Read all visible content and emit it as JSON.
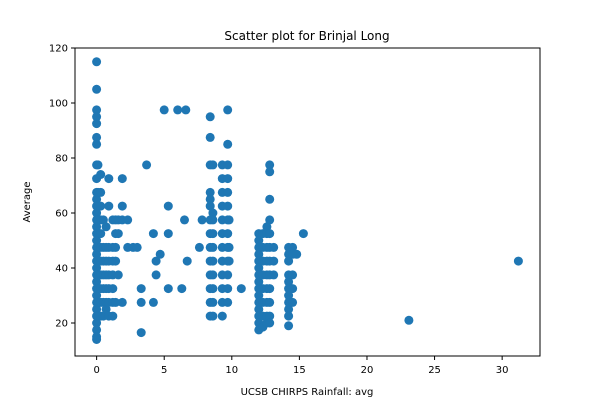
{
  "chart_data": {
    "type": "scatter",
    "title": "Scatter plot for Brinjal Long",
    "xlabel": "UCSB CHIRPS Rainfall: avg",
    "ylabel": "Average",
    "xlim": [
      -1.6,
      32.8
    ],
    "ylim": [
      8,
      120
    ],
    "xticks": [
      0,
      5,
      10,
      15,
      20,
      25,
      30
    ],
    "yticks": [
      20,
      40,
      60,
      80,
      100,
      120
    ],
    "grid": false,
    "marker_color": "#1f77b4",
    "series": [
      {
        "points": [
          [
            0.0,
            115
          ],
          [
            0.0,
            105
          ],
          [
            0.0,
            97.5
          ],
          [
            0.0,
            95
          ],
          [
            0.0,
            92.5
          ],
          [
            0.0,
            87.5
          ],
          [
            0.0,
            85
          ],
          [
            0.0,
            77.5
          ],
          [
            0.0,
            72.5
          ],
          [
            0.0,
            67.5
          ],
          [
            0.0,
            65
          ],
          [
            0.0,
            62.5
          ],
          [
            0.0,
            60
          ],
          [
            0.0,
            57.5
          ],
          [
            0.0,
            55
          ],
          [
            0.0,
            52.5
          ],
          [
            0.0,
            50
          ],
          [
            0.0,
            47.5
          ],
          [
            0.0,
            45
          ],
          [
            0.0,
            42.5
          ],
          [
            0.0,
            40
          ],
          [
            0.0,
            37.5
          ],
          [
            0.0,
            35
          ],
          [
            0.0,
            32.5
          ],
          [
            0.0,
            30
          ],
          [
            0.0,
            27.5
          ],
          [
            0.0,
            25
          ],
          [
            0.0,
            22.5
          ],
          [
            0.0,
            20
          ],
          [
            0.0,
            17.5
          ],
          [
            0.0,
            15
          ],
          [
            0.0,
            14
          ],
          [
            0.1,
            77.5
          ],
          [
            0.1,
            67.5
          ],
          [
            0.1,
            57.5
          ],
          [
            0.1,
            47.5
          ],
          [
            0.1,
            37.5
          ],
          [
            0.1,
            27.5
          ],
          [
            0.1,
            22.5
          ],
          [
            0.3,
            74
          ],
          [
            0.3,
            67.5
          ],
          [
            0.3,
            62.5
          ],
          [
            0.3,
            57.5
          ],
          [
            0.3,
            52.5
          ],
          [
            0.3,
            47.5
          ],
          [
            0.3,
            42.5
          ],
          [
            0.3,
            37.5
          ],
          [
            0.3,
            32.5
          ],
          [
            0.3,
            27.5
          ],
          [
            0.3,
            22.5
          ],
          [
            0.5,
            57.5
          ],
          [
            0.5,
            47.5
          ],
          [
            0.5,
            42.5
          ],
          [
            0.5,
            37.5
          ],
          [
            0.5,
            32.5
          ],
          [
            0.5,
            27.5
          ],
          [
            0.5,
            22.5
          ],
          [
            0.7,
            55
          ],
          [
            0.7,
            47.5
          ],
          [
            0.7,
            42.5
          ],
          [
            0.7,
            37.5
          ],
          [
            0.7,
            32.5
          ],
          [
            0.7,
            27.5
          ],
          [
            0.7,
            25
          ],
          [
            0.9,
            72.5
          ],
          [
            0.9,
            62.5
          ],
          [
            0.9,
            47.5
          ],
          [
            0.9,
            42.5
          ],
          [
            0.9,
            37.5
          ],
          [
            0.9,
            32.5
          ],
          [
            0.9,
            27.5
          ],
          [
            0.9,
            22.5
          ],
          [
            1.2,
            57.5
          ],
          [
            1.2,
            47.5
          ],
          [
            1.2,
            42.5
          ],
          [
            1.2,
            37.5
          ],
          [
            1.2,
            32.5
          ],
          [
            1.2,
            27.5
          ],
          [
            1.2,
            22.5
          ],
          [
            1.4,
            57.5
          ],
          [
            1.4,
            52.5
          ],
          [
            1.4,
            47.5
          ],
          [
            1.4,
            42.5
          ],
          [
            1.4,
            27.5
          ],
          [
            1.6,
            57.5
          ],
          [
            1.6,
            52.5
          ],
          [
            1.6,
            37.5
          ],
          [
            1.9,
            72.5
          ],
          [
            1.9,
            62.5
          ],
          [
            1.9,
            57.5
          ],
          [
            1.9,
            27.5
          ],
          [
            2.3,
            57.5
          ],
          [
            2.3,
            47.5
          ],
          [
            2.7,
            47.5
          ],
          [
            3.0,
            47.5
          ],
          [
            3.3,
            32.5
          ],
          [
            3.3,
            27.5
          ],
          [
            3.3,
            16.5
          ],
          [
            3.7,
            77.5
          ],
          [
            4.2,
            52.5
          ],
          [
            4.2,
            27.5
          ],
          [
            4.4,
            42.5
          ],
          [
            4.4,
            37.5
          ],
          [
            4.7,
            45
          ],
          [
            5.0,
            97.5
          ],
          [
            5.3,
            62.5
          ],
          [
            5.3,
            52.5
          ],
          [
            5.3,
            32.5
          ],
          [
            6.0,
            97.5
          ],
          [
            6.3,
            32.5
          ],
          [
            6.5,
            57.5
          ],
          [
            6.6,
            97.5
          ],
          [
            6.7,
            42.5
          ],
          [
            7.6,
            47.5
          ],
          [
            7.8,
            57.5
          ],
          [
            8.4,
            95
          ],
          [
            8.4,
            87.5
          ],
          [
            8.4,
            77.5
          ],
          [
            8.4,
            67.5
          ],
          [
            8.4,
            65
          ],
          [
            8.4,
            62.5
          ],
          [
            8.4,
            57.5
          ],
          [
            8.4,
            52.5
          ],
          [
            8.4,
            47.5
          ],
          [
            8.4,
            42.5
          ],
          [
            8.4,
            37.5
          ],
          [
            8.4,
            32.5
          ],
          [
            8.4,
            27.5
          ],
          [
            8.4,
            22.5
          ],
          [
            8.6,
            77.5
          ],
          [
            8.6,
            60
          ],
          [
            8.6,
            57.5
          ],
          [
            8.6,
            52.5
          ],
          [
            8.6,
            47.5
          ],
          [
            8.6,
            42.5
          ],
          [
            8.6,
            37.5
          ],
          [
            8.6,
            32.5
          ],
          [
            8.6,
            27.5
          ],
          [
            8.6,
            22.5
          ],
          [
            9.3,
            77.5
          ],
          [
            9.3,
            72.5
          ],
          [
            9.3,
            67.5
          ],
          [
            9.3,
            62.5
          ],
          [
            9.3,
            57.5
          ],
          [
            9.3,
            52.5
          ],
          [
            9.3,
            47.5
          ],
          [
            9.3,
            42.5
          ],
          [
            9.3,
            37.5
          ],
          [
            9.3,
            32.5
          ],
          [
            9.3,
            27.5
          ],
          [
            9.3,
            22.5
          ],
          [
            9.7,
            97.5
          ],
          [
            9.7,
            85
          ],
          [
            9.7,
            77.5
          ],
          [
            9.7,
            72.5
          ],
          [
            9.7,
            67.5
          ],
          [
            9.7,
            62.5
          ],
          [
            9.7,
            57.5
          ],
          [
            9.7,
            52.5
          ],
          [
            9.7,
            47.5
          ],
          [
            9.7,
            42.5
          ],
          [
            9.7,
            37.5
          ],
          [
            9.7,
            32.5
          ],
          [
            9.7,
            27.5
          ],
          [
            9.8,
            57.5
          ],
          [
            9.8,
            47.5
          ],
          [
            9.8,
            42.5
          ],
          [
            10.7,
            32.5
          ],
          [
            12.0,
            52.5
          ],
          [
            12.0,
            50
          ],
          [
            12.0,
            47.5
          ],
          [
            12.0,
            45
          ],
          [
            12.0,
            42.5
          ],
          [
            12.0,
            40
          ],
          [
            12.0,
            37.5
          ],
          [
            12.0,
            35
          ],
          [
            12.0,
            32.5
          ],
          [
            12.0,
            30
          ],
          [
            12.0,
            27.5
          ],
          [
            12.0,
            25
          ],
          [
            12.0,
            22.5
          ],
          [
            12.0,
            20
          ],
          [
            12.0,
            17.5
          ],
          [
            12.3,
            52.5
          ],
          [
            12.3,
            47.5
          ],
          [
            12.3,
            42.5
          ],
          [
            12.3,
            37.5
          ],
          [
            12.3,
            32.5
          ],
          [
            12.3,
            27.5
          ],
          [
            12.3,
            22.5
          ],
          [
            12.3,
            18.5
          ],
          [
            12.6,
            55
          ],
          [
            12.6,
            52.5
          ],
          [
            12.6,
            47.5
          ],
          [
            12.6,
            42.5
          ],
          [
            12.6,
            37.5
          ],
          [
            12.6,
            32.5
          ],
          [
            12.6,
            27.5
          ],
          [
            12.6,
            22.5
          ],
          [
            12.6,
            20
          ],
          [
            12.8,
            77.5
          ],
          [
            12.8,
            75
          ],
          [
            12.8,
            65
          ],
          [
            12.8,
            57.5
          ],
          [
            12.8,
            52.5
          ],
          [
            12.8,
            47.5
          ],
          [
            12.8,
            42.5
          ],
          [
            12.8,
            37.5
          ],
          [
            12.8,
            32.5
          ],
          [
            12.8,
            27.5
          ],
          [
            12.8,
            22.5
          ],
          [
            12.8,
            20
          ],
          [
            13.1,
            47.5
          ],
          [
            13.1,
            42.5
          ],
          [
            13.1,
            37.5
          ],
          [
            14.2,
            47.5
          ],
          [
            14.2,
            45
          ],
          [
            14.2,
            42.5
          ],
          [
            14.2,
            37.5
          ],
          [
            14.2,
            35
          ],
          [
            14.2,
            32.5
          ],
          [
            14.2,
            30
          ],
          [
            14.2,
            27.5
          ],
          [
            14.2,
            25
          ],
          [
            14.2,
            22.5
          ],
          [
            14.2,
            19
          ],
          [
            14.5,
            47.5
          ],
          [
            14.5,
            45
          ],
          [
            14.5,
            37.5
          ],
          [
            14.5,
            32.5
          ],
          [
            14.5,
            27.5
          ],
          [
            14.8,
            45
          ],
          [
            15.3,
            52.5
          ],
          [
            23.1,
            21
          ],
          [
            31.2,
            42.5
          ]
        ]
      }
    ]
  }
}
